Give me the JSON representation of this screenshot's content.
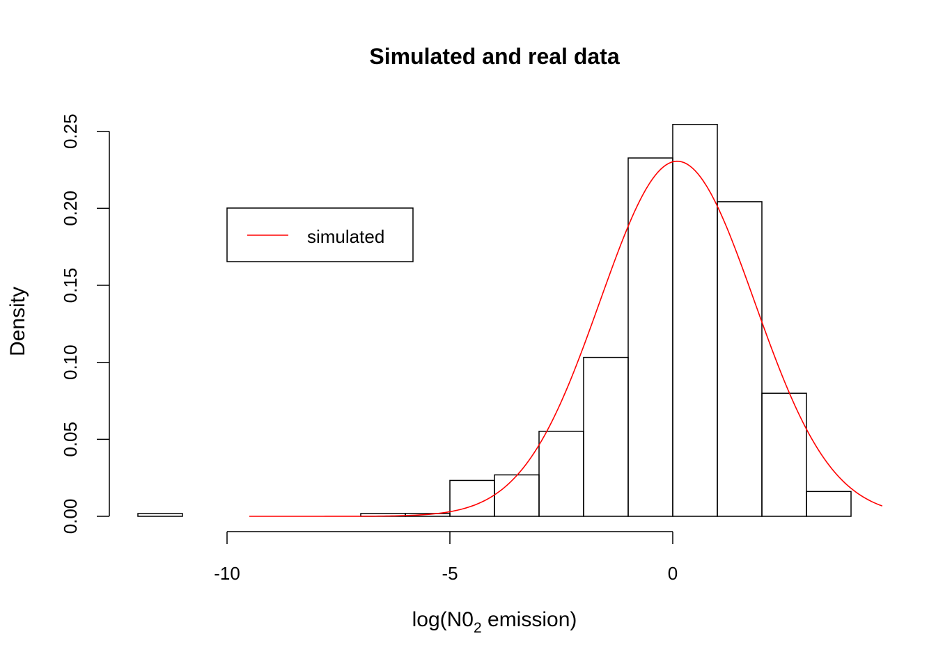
{
  "chart_data": {
    "type": "bar",
    "title": "Simulated and real data",
    "xlabel": "log(N0",
    "xlabel_sub": "2",
    "xlabel_suffix": " emission)",
    "ylabel": "Density",
    "xlim": [
      -12,
      4
    ],
    "ylim": [
      0,
      0.25
    ],
    "x_ticks": [
      {
        "value": -10,
        "label": "-10"
      },
      {
        "value": -5,
        "label": "-5"
      },
      {
        "value": 0,
        "label": "0"
      }
    ],
    "y_ticks": [
      {
        "value": 0.0,
        "label": "0.00"
      },
      {
        "value": 0.05,
        "label": "0.05"
      },
      {
        "value": 0.1,
        "label": "0.10"
      },
      {
        "value": 0.15,
        "label": "0.15"
      },
      {
        "value": 0.2,
        "label": "0.20"
      },
      {
        "value": 0.25,
        "label": "0.25"
      }
    ],
    "bins": [
      {
        "x0": -12,
        "x1": -11,
        "density": 0.0018
      },
      {
        "x0": -11,
        "x1": -10,
        "density": 0.0
      },
      {
        "x0": -10,
        "x1": -9,
        "density": 0.0
      },
      {
        "x0": -9,
        "x1": -8,
        "density": 0.0
      },
      {
        "x0": -8,
        "x1": -7,
        "density": 0.0
      },
      {
        "x0": -7,
        "x1": -6,
        "density": 0.0018
      },
      {
        "x0": -6,
        "x1": -5,
        "density": 0.0018
      },
      {
        "x0": -5,
        "x1": -4,
        "density": 0.0233
      },
      {
        "x0": -4,
        "x1": -3,
        "density": 0.0269
      },
      {
        "x0": -3,
        "x1": -2,
        "density": 0.0552
      },
      {
        "x0": -2,
        "x1": -1,
        "density": 0.1032
      },
      {
        "x0": -1,
        "x1": 0,
        "density": 0.2327
      },
      {
        "x0": 0,
        "x1": 1,
        "density": 0.2545
      },
      {
        "x0": 1,
        "x1": 2,
        "density": 0.2043
      },
      {
        "x0": 2,
        "x1": 3,
        "density": 0.0799
      },
      {
        "x0": 3,
        "x1": 4,
        "density": 0.0161
      }
    ],
    "series": [
      {
        "name": "simulated",
        "color": "#ff0000",
        "curve": "normal-density",
        "mean": 0.1,
        "sd": 1.73,
        "x_from": -9.5,
        "x_to": 4.7
      }
    ],
    "legend": {
      "position": "top-left",
      "entries": [
        "simulated"
      ]
    },
    "grid": false
  }
}
